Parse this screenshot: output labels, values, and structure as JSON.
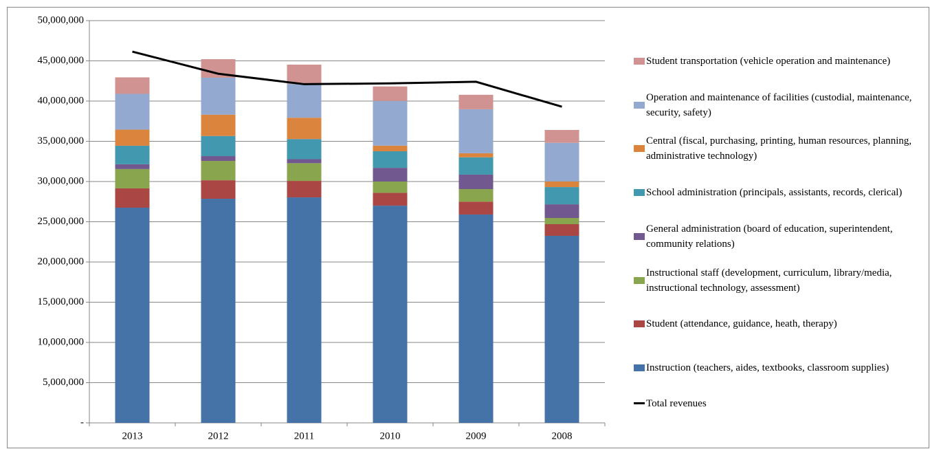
{
  "chart_data": {
    "type": "bar",
    "stacked": true,
    "categories": [
      "2013",
      "2012",
      "2011",
      "2010",
      "2009",
      "2008"
    ],
    "series": [
      {
        "name": "Instruction (teachers, aides, textbooks, classroom supplies)",
        "color": "#4572a7",
        "values": [
          26750000,
          27860000,
          28030000,
          27000000,
          25900000,
          23250000
        ]
      },
      {
        "name": "Student (attendance, guidance, heath, therapy)",
        "color": "#aa4643",
        "values": [
          2400000,
          2300000,
          2050000,
          1600000,
          1600000,
          1450000
        ]
      },
      {
        "name": "Instructional staff (development, curriculum, library/media, instructional technology, assessment)",
        "color": "#89a54e",
        "values": [
          2400000,
          2400000,
          2200000,
          1400000,
          1560000,
          770000
        ]
      },
      {
        "name": "General administration (board of education, superintendent, community relations)",
        "color": "#71588f",
        "values": [
          600000,
          600000,
          500000,
          1700000,
          1800000,
          1700000
        ]
      },
      {
        "name": "School administration (principals, assistants, records, clerical)",
        "color": "#4198af",
        "values": [
          2300000,
          2500000,
          2500000,
          2060000,
          2150000,
          2140000
        ]
      },
      {
        "name": "Central (fiscal, purchasing, printing, human resources, planning, administrative technology)",
        "color": "#db843d",
        "values": [
          2000000,
          2650000,
          2650000,
          700000,
          500000,
          700000
        ]
      },
      {
        "name": "Operation and maintenance of facilities (custodial, maintenance, security, safety)",
        "color": "#93a9cf",
        "values": [
          4450000,
          4600000,
          4200000,
          5560000,
          5470000,
          4800000
        ]
      },
      {
        "name": "Student transportation (vehicle operation and maintenance)",
        "color": "#d19392",
        "values": [
          2050000,
          2300000,
          2400000,
          1800000,
          1800000,
          1600000
        ]
      },
      {
        "name": "Total revenues",
        "type": "line",
        "color": "#000000",
        "values": [
          46150000,
          43400000,
          42100000,
          42200000,
          42400000,
          39300000
        ]
      }
    ],
    "ylim": [
      0,
      50000000
    ],
    "yticks": [
      {
        "value": 0,
        "label": "-"
      },
      {
        "value": 5000000,
        "label": "5,000,000"
      },
      {
        "value": 10000000,
        "label": "10,000,000"
      },
      {
        "value": 15000000,
        "label": "15,000,000"
      },
      {
        "value": 20000000,
        "label": "20,000,000"
      },
      {
        "value": 25000000,
        "label": "25,000,000"
      },
      {
        "value": 30000000,
        "label": "30,000,000"
      },
      {
        "value": 35000000,
        "label": "35,000,000"
      },
      {
        "value": 40000000,
        "label": "40,000,000"
      },
      {
        "value": 45000000,
        "label": "45,000,000"
      },
      {
        "value": 50000000,
        "label": "50,000,000"
      }
    ],
    "grid": true,
    "legend": "right"
  }
}
